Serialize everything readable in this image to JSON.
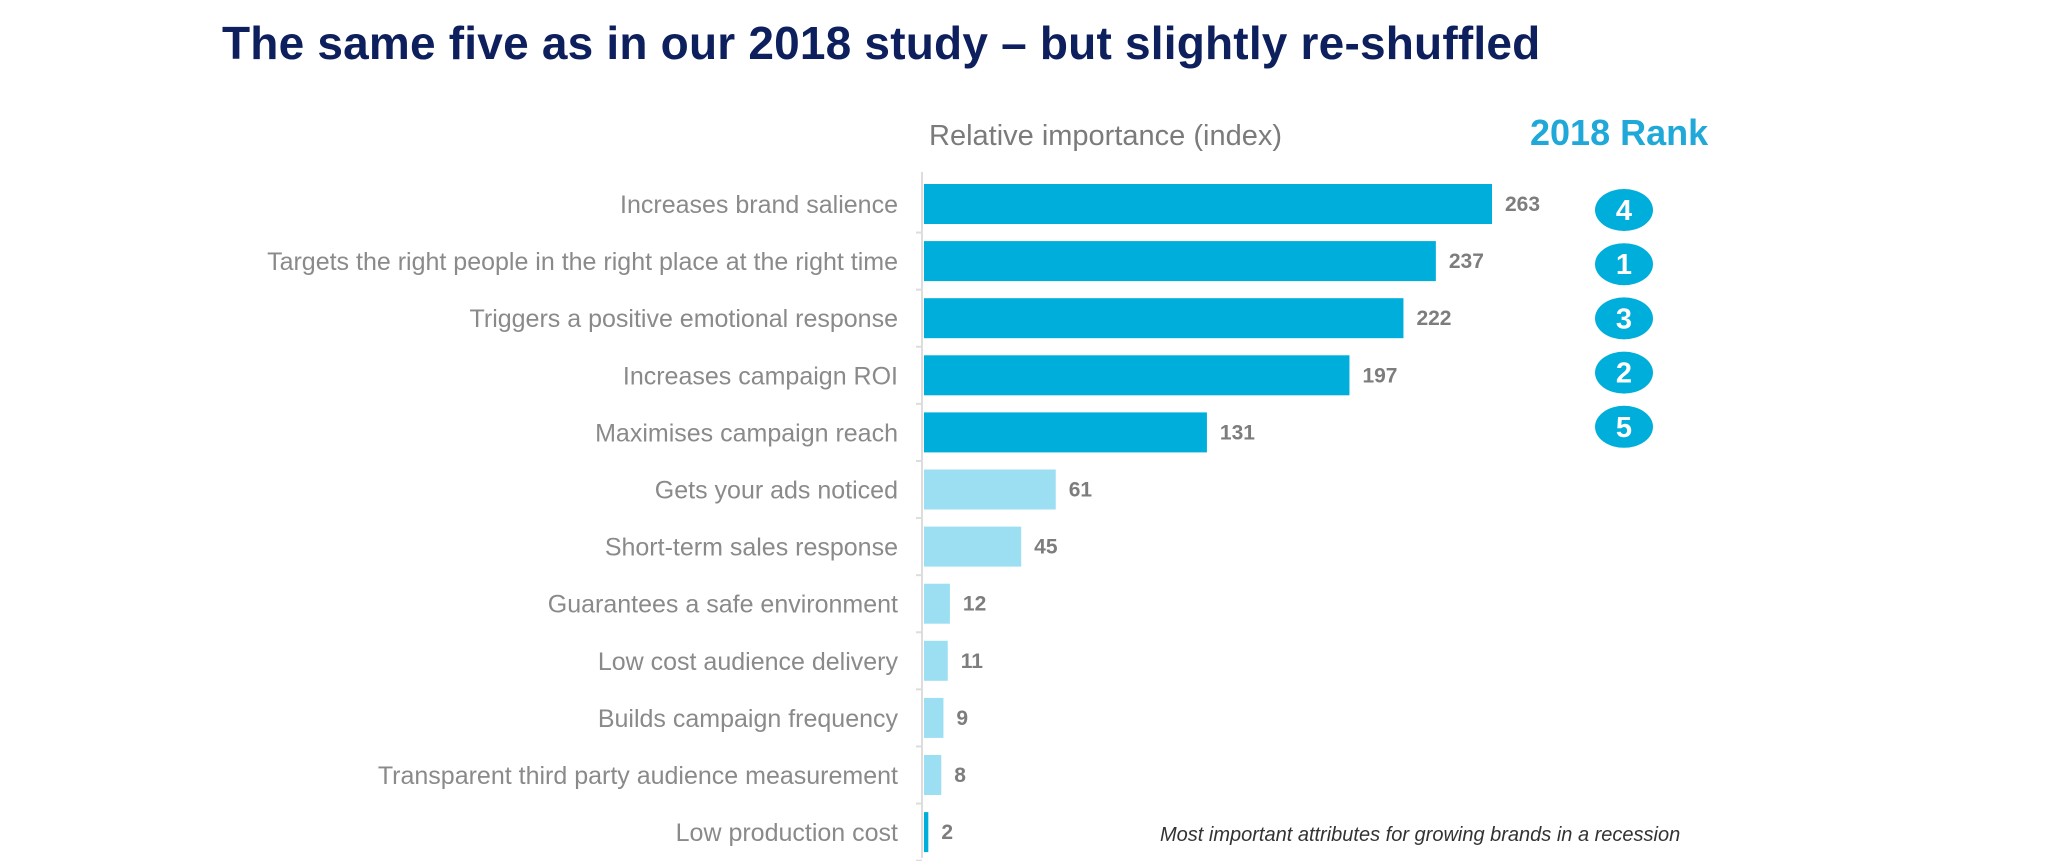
{
  "title": "The same five as in our 2018 study – but slightly re-shuffled",
  "axis_caption": "Relative importance (index)",
  "rank_header": "2018 Rank",
  "footnote": "Most important attributes for growing brands in a recession",
  "colors": {
    "top_five": "#00aedb",
    "others": "#9ddff2",
    "rank_badge": "#00aedb",
    "title": "#0d1f5c"
  },
  "chart_data": {
    "type": "bar",
    "orientation": "horizontal",
    "categories": [
      "Increases brand salience",
      "Targets the right people in the right place at the right time",
      "Triggers a positive emotional response",
      "Increases campaign ROI",
      "Maximises campaign reach",
      "Gets your ads noticed",
      "Short-term sales response",
      "Guarantees a safe environment",
      "Low cost audience delivery",
      "Builds campaign frequency",
      "Transparent third party audience measurement",
      "Low production cost"
    ],
    "values": [
      263,
      237,
      222,
      197,
      131,
      61,
      45,
      12,
      11,
      9,
      8,
      2
    ],
    "highlight_top_n": 5,
    "ranks_2018": [
      4,
      1,
      3,
      2,
      5
    ],
    "xlabel": "Relative importance (index)",
    "xlim": [
      0,
      263
    ],
    "grid": false,
    "legend": "none"
  }
}
